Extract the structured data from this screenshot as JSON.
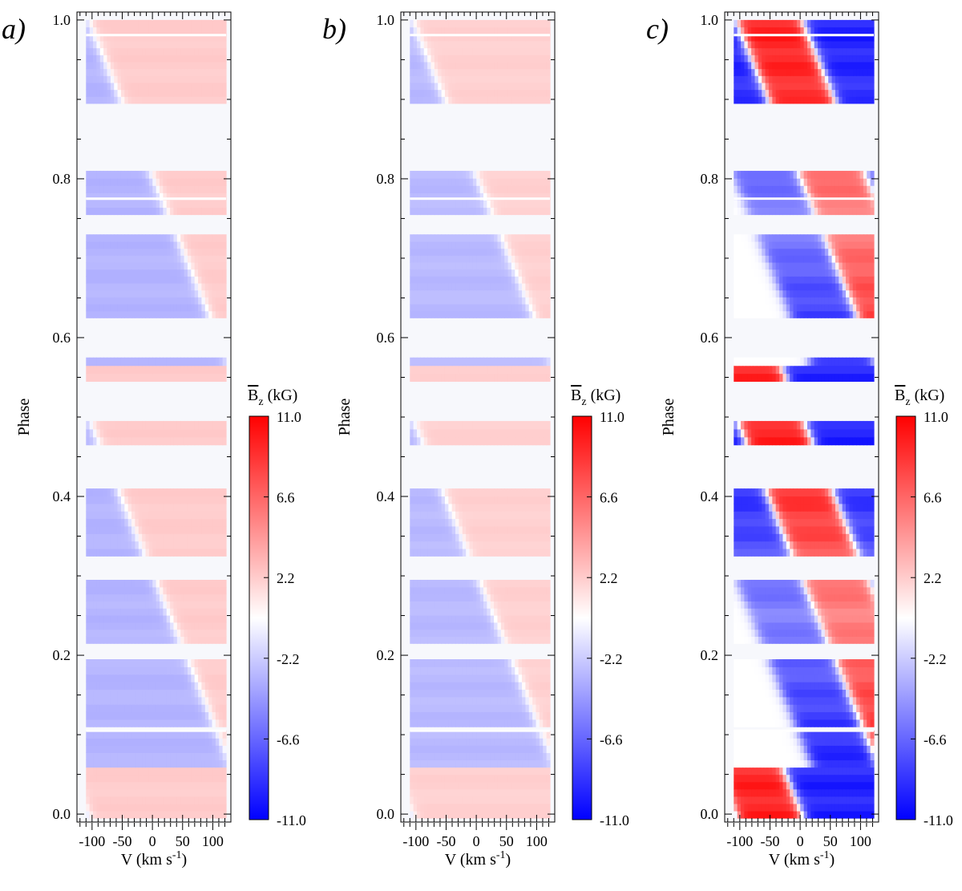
{
  "chart_data": [
    {
      "type": "heatmap",
      "panel_label": "a)",
      "xlabel": "V (km s⁻¹)",
      "ylabel": "Phase",
      "x_ticks": [
        -100,
        -50,
        0,
        50,
        100
      ],
      "y_ticks": [
        0.0,
        0.2,
        0.4,
        0.6,
        0.8,
        1.0
      ],
      "xlim": [
        -125,
        130
      ],
      "ylim": [
        -0.01,
        1.01
      ],
      "colorbar": {
        "label": "B̅z (kG)",
        "ticks": [
          11.0,
          6.6,
          2.2,
          -2.2,
          -6.6,
          -11.0
        ],
        "range": [
          -11.0,
          11.0
        ],
        "colors": [
          "#0000ff",
          "#ffffff",
          "#ff0000"
        ]
      },
      "observed_phase_bands": [
        [
          -0.005,
          0.105
        ],
        [
          0.11,
          0.195
        ],
        [
          0.215,
          0.295
        ],
        [
          0.325,
          0.41
        ],
        [
          0.465,
          0.495
        ],
        [
          0.545,
          0.575
        ],
        [
          0.625,
          0.73
        ],
        [
          0.755,
          0.81
        ],
        [
          0.895,
          1.0
        ]
      ],
      "pattern": {
        "mode": "sweep",
        "left_sign": -1,
        "left_amplitude_kG": 3.2,
        "right_amplitude_kG": 2.2,
        "crossing_phase_start": 0.2,
        "crossing_velocity_start_kms": 55,
        "crossing_slope_kms_per_phase": 540
      }
    },
    {
      "type": "heatmap",
      "panel_label": "b)",
      "xlabel": "V (km s⁻¹)",
      "ylabel": "Phase",
      "x_ticks": [
        -100,
        -50,
        0,
        50,
        100
      ],
      "y_ticks": [
        0.0,
        0.2,
        0.4,
        0.6,
        0.8,
        1.0
      ],
      "xlim": [
        -125,
        130
      ],
      "ylim": [
        -0.01,
        1.01
      ],
      "colorbar": {
        "label": "B̅z (kG)",
        "ticks": [
          11.0,
          6.6,
          2.2,
          -2.2,
          -6.6,
          -11.0
        ],
        "range": [
          -11.0,
          11.0
        ],
        "colors": [
          "#0000ff",
          "#ffffff",
          "#ff0000"
        ]
      },
      "observed_phase_bands": [
        [
          -0.005,
          0.105
        ],
        [
          0.11,
          0.195
        ],
        [
          0.215,
          0.295
        ],
        [
          0.325,
          0.41
        ],
        [
          0.465,
          0.495
        ],
        [
          0.545,
          0.575
        ],
        [
          0.625,
          0.73
        ],
        [
          0.755,
          0.81
        ],
        [
          0.895,
          1.0
        ]
      ],
      "pattern": {
        "mode": "sweep",
        "left_sign": -1,
        "left_amplitude_kG": 3.0,
        "right_amplitude_kG": 2.0,
        "crossing_phase_start": 0.2,
        "crossing_velocity_start_kms": 55,
        "crossing_slope_kms_per_phase": 540
      }
    },
    {
      "type": "heatmap",
      "panel_label": "c)",
      "xlabel": "V (km s⁻¹)",
      "ylabel": "Phase",
      "x_ticks": [
        -100,
        -50,
        0,
        50,
        100
      ],
      "y_ticks": [
        0.0,
        0.2,
        0.4,
        0.6,
        0.8,
        1.0
      ],
      "xlim": [
        -125,
        130
      ],
      "ylim": [
        -0.01,
        1.01
      ],
      "colorbar": {
        "label": "B̅z (kG)",
        "ticks": [
          11.0,
          6.6,
          2.2,
          -2.2,
          -6.6,
          -11.0
        ],
        "range": [
          -11.0,
          11.0
        ],
        "colors": [
          "#0000ff",
          "#ffffff",
          "#ff0000"
        ]
      },
      "observed_phase_bands": [
        [
          -0.005,
          0.105
        ],
        [
          0.11,
          0.195
        ],
        [
          0.215,
          0.295
        ],
        [
          0.325,
          0.41
        ],
        [
          0.465,
          0.495
        ],
        [
          0.545,
          0.575
        ],
        [
          0.625,
          0.73
        ],
        [
          0.755,
          0.81
        ],
        [
          0.895,
          1.0
        ]
      ],
      "pattern": {
        "mode": "tri",
        "amplitude_kG": 9.5,
        "crossing_phase_start": 0.2,
        "crossing_velocity_start_kms": 55,
        "crossing_slope_kms_per_phase": 540
      }
    }
  ]
}
